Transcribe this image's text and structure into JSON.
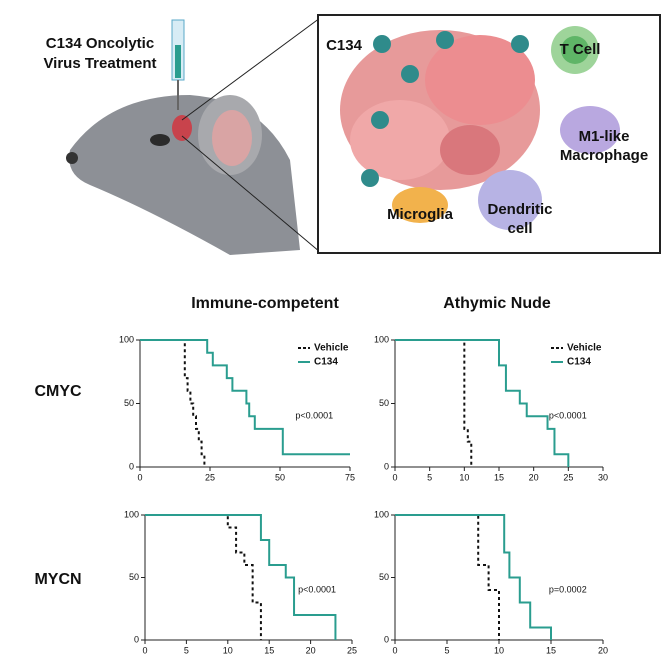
{
  "illustration": {
    "treatment": [
      "C134 Oncolytic",
      "Virus Treatment"
    ],
    "virus": "C134",
    "t_cell": "T Cell",
    "macrophage": [
      "M1-like",
      "Macrophage"
    ],
    "microglia": "Microglia",
    "dendritic": [
      "Dendritic",
      "cell"
    ]
  },
  "column_headers": [
    "Immune-competent",
    "Athymic Nude"
  ],
  "row_headers": [
    "CMYC",
    "MYCN"
  ],
  "chart_data": [
    {
      "type": "step",
      "annotation": "p<0.0001",
      "legend": true,
      "xlim": [
        0,
        75
      ],
      "xticks": [
        0,
        25,
        50,
        75
      ],
      "ylim": [
        0,
        100
      ],
      "yticks": [
        0,
        50,
        100
      ],
      "series": [
        {
          "name": "Vehicle",
          "color": "#111111",
          "dashed": true,
          "x": [
            0,
            16,
            17,
            18,
            19,
            20,
            21,
            22,
            23
          ],
          "values": [
            100,
            70,
            60,
            50,
            40,
            30,
            20,
            10,
            0
          ]
        },
        {
          "name": "C134",
          "color": "#2a9d8f",
          "dashed": false,
          "x": [
            0,
            24,
            26,
            31,
            33,
            38,
            39,
            41,
            51,
            75
          ],
          "values": [
            100,
            90,
            80,
            70,
            60,
            50,
            40,
            30,
            10,
            10
          ]
        }
      ]
    },
    {
      "type": "step",
      "annotation": "p<0.0001",
      "legend": true,
      "xlim": [
        0,
        30
      ],
      "xticks": [
        0,
        5,
        10,
        15,
        20,
        25,
        30
      ],
      "ylim": [
        0,
        100
      ],
      "yticks": [
        0,
        50,
        100
      ],
      "series": [
        {
          "name": "Vehicle",
          "color": "#111111",
          "dashed": true,
          "x": [
            0,
            10,
            10.5,
            11
          ],
          "values": [
            100,
            30,
            20,
            0
          ]
        },
        {
          "name": "C134",
          "color": "#2a9d8f",
          "dashed": false,
          "x": [
            0,
            15,
            16,
            18,
            19,
            22,
            23,
            25
          ],
          "values": [
            100,
            80,
            60,
            50,
            40,
            30,
            10,
            0
          ]
        }
      ]
    },
    {
      "type": "step",
      "annotation": "p<0.0001",
      "legend": false,
      "xlim": [
        0,
        25
      ],
      "xticks": [
        0,
        5,
        10,
        15,
        20,
        25
      ],
      "ylim": [
        0,
        100
      ],
      "yticks": [
        0,
        50,
        100
      ],
      "series": [
        {
          "name": "Vehicle",
          "color": "#111111",
          "dashed": true,
          "x": [
            0,
            10,
            11,
            12,
            13,
            14
          ],
          "values": [
            100,
            90,
            70,
            60,
            30,
            0
          ]
        },
        {
          "name": "C134",
          "color": "#2a9d8f",
          "dashed": false,
          "x": [
            0,
            14,
            15,
            17,
            18,
            23
          ],
          "values": [
            100,
            80,
            60,
            50,
            20,
            0
          ]
        }
      ]
    },
    {
      "type": "step",
      "annotation": "p=0.0002",
      "legend": false,
      "xlim": [
        0,
        20
      ],
      "xticks": [
        0,
        5,
        10,
        15,
        20
      ],
      "ylim": [
        0,
        100
      ],
      "yticks": [
        0,
        50,
        100
      ],
      "series": [
        {
          "name": "Vehicle",
          "color": "#111111",
          "dashed": true,
          "x": [
            0,
            8,
            9,
            10
          ],
          "values": [
            100,
            60,
            40,
            0
          ]
        },
        {
          "name": "C134",
          "color": "#2a9d8f",
          "dashed": false,
          "x": [
            0,
            10.5,
            11,
            12,
            13,
            15
          ],
          "values": [
            100,
            70,
            50,
            30,
            10,
            0
          ]
        }
      ]
    }
  ]
}
